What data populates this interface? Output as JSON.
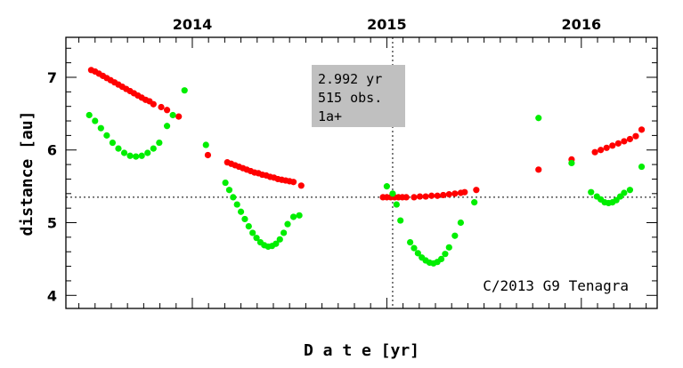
{
  "chart_data": {
    "type": "scatter",
    "xlabel": "D a t e [yr]",
    "ylabel": "distance [au]",
    "xlim": [
      2013.35,
      2016.39
    ],
    "ylim": [
      3.82,
      7.55
    ],
    "x_ticks": [
      2014,
      2015,
      2016
    ],
    "x_tick_labels": [
      "2014",
      "2015",
      "2016"
    ],
    "y_ticks": [
      4,
      5,
      6,
      7
    ],
    "y_tick_labels": [
      "4",
      "5",
      "6",
      "7"
    ],
    "reference_lines": {
      "x": 2015.03,
      "y": 5.35
    },
    "info_box": {
      "lines": [
        "2.992 yr",
        "515 obs.",
        "1a+"
      ],
      "background": "#c0c0c0"
    },
    "annotation": "C/2013 G9 Tenagra",
    "series": [
      {
        "color": "#ff0000",
        "x": [
          2013.48,
          2013.5,
          2013.52,
          2013.54,
          2013.56,
          2013.58,
          2013.6,
          2013.62,
          2013.64,
          2013.66,
          2013.68,
          2013.7,
          2013.72,
          2013.74,
          2013.76,
          2013.78,
          2013.8,
          2013.84,
          2013.87,
          2013.93,
          2014.08,
          2014.18,
          2014.2,
          2014.22,
          2014.24,
          2014.26,
          2014.28,
          2014.3,
          2014.32,
          2014.34,
          2014.36,
          2014.38,
          2014.4,
          2014.42,
          2014.44,
          2014.46,
          2014.48,
          2014.5,
          2014.52,
          2014.56,
          2014.98,
          2015.0,
          2015.02,
          2015.04,
          2015.06,
          2015.08,
          2015.1,
          2015.14,
          2015.17,
          2015.2,
          2015.23,
          2015.26,
          2015.29,
          2015.32,
          2015.35,
          2015.38,
          2015.4,
          2015.46,
          2015.78,
          2015.95,
          2016.07,
          2016.1,
          2016.13,
          2016.16,
          2016.19,
          2016.22,
          2016.25,
          2016.28,
          2016.31
        ],
        "y": [
          7.1,
          7.08,
          7.05,
          7.02,
          6.99,
          6.96,
          6.93,
          6.9,
          6.87,
          6.84,
          6.81,
          6.78,
          6.75,
          6.72,
          6.69,
          6.67,
          6.63,
          6.59,
          6.55,
          6.46,
          5.93,
          5.83,
          5.81,
          5.79,
          5.77,
          5.75,
          5.73,
          5.71,
          5.69,
          5.68,
          5.66,
          5.65,
          5.63,
          5.62,
          5.6,
          5.59,
          5.58,
          5.57,
          5.56,
          5.51,
          5.35,
          5.35,
          5.35,
          5.35,
          5.35,
          5.35,
          5.35,
          5.35,
          5.36,
          5.36,
          5.37,
          5.37,
          5.38,
          5.39,
          5.4,
          5.41,
          5.42,
          5.45,
          5.73,
          5.87,
          5.97,
          6.0,
          6.03,
          6.06,
          6.09,
          6.12,
          6.15,
          6.19,
          6.28
        ]
      },
      {
        "color": "#00ee00",
        "x": [
          2013.47,
          2013.5,
          2013.53,
          2013.56,
          2013.59,
          2013.62,
          2013.65,
          2013.68,
          2013.71,
          2013.74,
          2013.77,
          2013.8,
          2013.83,
          2013.87,
          2013.9,
          2013.96,
          2014.07,
          2014.17,
          2014.19,
          2014.21,
          2014.23,
          2014.25,
          2014.27,
          2014.29,
          2014.31,
          2014.33,
          2014.35,
          2014.37,
          2014.39,
          2014.41,
          2014.43,
          2014.45,
          2014.47,
          2014.49,
          2014.52,
          2014.55,
          2015.0,
          2015.03,
          2015.05,
          2015.07,
          2015.12,
          2015.14,
          2015.16,
          2015.18,
          2015.2,
          2015.22,
          2015.24,
          2015.26,
          2015.28,
          2015.3,
          2015.32,
          2015.35,
          2015.38,
          2015.45,
          2015.78,
          2015.95,
          2016.05,
          2016.08,
          2016.1,
          2016.12,
          2016.14,
          2016.16,
          2016.18,
          2016.2,
          2016.22,
          2016.25,
          2016.31
        ],
        "y": [
          6.48,
          6.4,
          6.3,
          6.2,
          6.1,
          6.02,
          5.96,
          5.92,
          5.91,
          5.92,
          5.96,
          6.02,
          6.1,
          6.33,
          6.48,
          6.82,
          6.07,
          5.55,
          5.45,
          5.35,
          5.25,
          5.15,
          5.05,
          4.95,
          4.86,
          4.79,
          4.73,
          4.69,
          4.67,
          4.68,
          4.71,
          4.77,
          4.86,
          4.98,
          5.08,
          5.1,
          5.5,
          5.4,
          5.25,
          5.03,
          4.73,
          4.65,
          4.58,
          4.52,
          4.48,
          4.45,
          4.44,
          4.46,
          4.5,
          4.57,
          4.66,
          4.82,
          5.0,
          5.28,
          6.44,
          5.82,
          5.42,
          5.36,
          5.32,
          5.28,
          5.27,
          5.28,
          5.31,
          5.36,
          5.41,
          5.45,
          5.77
        ]
      }
    ]
  }
}
